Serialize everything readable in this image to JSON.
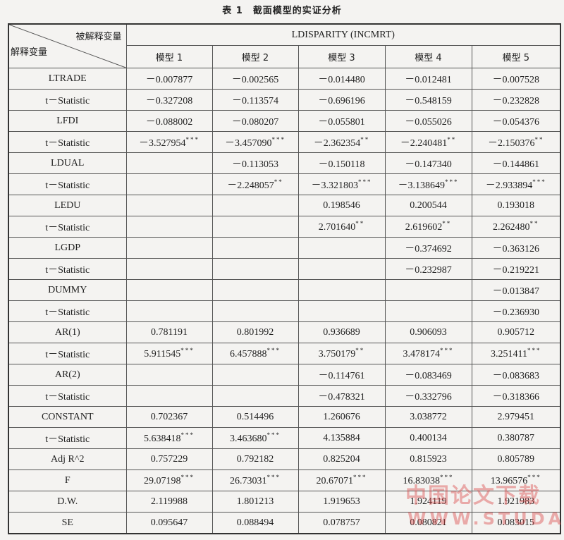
{
  "title": "表 1　截面模型的实证分析",
  "header": {
    "dependent_label": "被解释变量",
    "independent_label": "解释变量",
    "dependent_variable": "LDISPARITY (INCMRT)",
    "models": [
      "模型 1",
      "模型 2",
      "模型 3",
      "模型 4",
      "模型 5"
    ]
  },
  "rows": [
    {
      "label": "LTRADE",
      "cells": [
        {
          "v": "－0.007877",
          "s": ""
        },
        {
          "v": "－0.002565",
          "s": ""
        },
        {
          "v": "－0.014480",
          "s": ""
        },
        {
          "v": "－0.012481",
          "s": ""
        },
        {
          "v": "－0.007528",
          "s": ""
        }
      ]
    },
    {
      "label": "t－Statistic",
      "cells": [
        {
          "v": "－0.327208",
          "s": ""
        },
        {
          "v": "－0.113574",
          "s": ""
        },
        {
          "v": "－0.696196",
          "s": ""
        },
        {
          "v": "－0.548159",
          "s": ""
        },
        {
          "v": "－0.232828",
          "s": ""
        }
      ]
    },
    {
      "label": "LFDI",
      "cells": [
        {
          "v": "－0.088002",
          "s": ""
        },
        {
          "v": "－0.080207",
          "s": ""
        },
        {
          "v": "－0.055801",
          "s": ""
        },
        {
          "v": "－0.055026",
          "s": ""
        },
        {
          "v": "－0.054376",
          "s": ""
        }
      ]
    },
    {
      "label": "t－Statistic",
      "cells": [
        {
          "v": "－3.527954",
          "s": "***"
        },
        {
          "v": "－3.457090",
          "s": "***"
        },
        {
          "v": "－2.362354",
          "s": "**"
        },
        {
          "v": "－2.240481",
          "s": "**"
        },
        {
          "v": "－2.150376",
          "s": "**"
        }
      ]
    },
    {
      "label": "LDUAL",
      "cells": [
        {
          "v": "",
          "s": ""
        },
        {
          "v": "－0.113053",
          "s": ""
        },
        {
          "v": "－0.150118",
          "s": ""
        },
        {
          "v": "－0.147340",
          "s": ""
        },
        {
          "v": "－0.144861",
          "s": ""
        }
      ]
    },
    {
      "label": "t－Statistic",
      "cells": [
        {
          "v": "",
          "s": ""
        },
        {
          "v": "－2.248057",
          "s": "**"
        },
        {
          "v": "－3.321803",
          "s": "***"
        },
        {
          "v": "－3.138649",
          "s": "***"
        },
        {
          "v": "－2.933894",
          "s": "***"
        }
      ]
    },
    {
      "label": "LEDU",
      "cells": [
        {
          "v": "",
          "s": ""
        },
        {
          "v": "",
          "s": ""
        },
        {
          "v": "0.198546",
          "s": ""
        },
        {
          "v": "0.200544",
          "s": ""
        },
        {
          "v": "0.193018",
          "s": ""
        }
      ]
    },
    {
      "label": "t－Statistic",
      "cells": [
        {
          "v": "",
          "s": ""
        },
        {
          "v": "",
          "s": ""
        },
        {
          "v": "2.701640",
          "s": "**"
        },
        {
          "v": "2.619602",
          "s": "**"
        },
        {
          "v": "2.262480",
          "s": "**"
        }
      ]
    },
    {
      "label": "LGDP",
      "cells": [
        {
          "v": "",
          "s": ""
        },
        {
          "v": "",
          "s": ""
        },
        {
          "v": "",
          "s": ""
        },
        {
          "v": "－0.374692",
          "s": ""
        },
        {
          "v": "－0.363126",
          "s": ""
        }
      ]
    },
    {
      "label": "t－Statistic",
      "cells": [
        {
          "v": "",
          "s": ""
        },
        {
          "v": "",
          "s": ""
        },
        {
          "v": "",
          "s": ""
        },
        {
          "v": "－0.232987",
          "s": ""
        },
        {
          "v": "－0.219221",
          "s": ""
        }
      ]
    },
    {
      "label": "DUMMY",
      "cells": [
        {
          "v": "",
          "s": ""
        },
        {
          "v": "",
          "s": ""
        },
        {
          "v": "",
          "s": ""
        },
        {
          "v": "",
          "s": ""
        },
        {
          "v": "－0.013847",
          "s": ""
        }
      ]
    },
    {
      "label": "t－Statistic",
      "cells": [
        {
          "v": "",
          "s": ""
        },
        {
          "v": "",
          "s": ""
        },
        {
          "v": "",
          "s": ""
        },
        {
          "v": "",
          "s": ""
        },
        {
          "v": "－0.236930",
          "s": ""
        }
      ]
    },
    {
      "label": "AR(1)",
      "cells": [
        {
          "v": "0.781191",
          "s": ""
        },
        {
          "v": "0.801992",
          "s": ""
        },
        {
          "v": "0.936689",
          "s": ""
        },
        {
          "v": "0.906093",
          "s": ""
        },
        {
          "v": "0.905712",
          "s": ""
        }
      ]
    },
    {
      "label": "t－Statistic",
      "cells": [
        {
          "v": "5.911545",
          "s": "***"
        },
        {
          "v": "6.457888",
          "s": "***"
        },
        {
          "v": "3.750179",
          "s": "**"
        },
        {
          "v": "3.478174",
          "s": "***"
        },
        {
          "v": "3.251411",
          "s": "***"
        }
      ]
    },
    {
      "label": "AR(2)",
      "cells": [
        {
          "v": "",
          "s": ""
        },
        {
          "v": "",
          "s": ""
        },
        {
          "v": "－0.114761",
          "s": ""
        },
        {
          "v": "－0.083469",
          "s": ""
        },
        {
          "v": "－0.083683",
          "s": ""
        }
      ]
    },
    {
      "label": "t－Statistic",
      "cells": [
        {
          "v": "",
          "s": ""
        },
        {
          "v": "",
          "s": ""
        },
        {
          "v": "－0.478321",
          "s": ""
        },
        {
          "v": "－0.332796",
          "s": ""
        },
        {
          "v": "－0.318366",
          "s": ""
        }
      ]
    },
    {
      "label": "CONSTANT",
      "cells": [
        {
          "v": "0.702367",
          "s": ""
        },
        {
          "v": "0.514496",
          "s": ""
        },
        {
          "v": "1.260676",
          "s": ""
        },
        {
          "v": "3.038772",
          "s": ""
        },
        {
          "v": "2.979451",
          "s": ""
        }
      ]
    },
    {
      "label": "t－Statistic",
      "cells": [
        {
          "v": "5.638418",
          "s": "***"
        },
        {
          "v": "3.463680",
          "s": "***"
        },
        {
          "v": "4.135884",
          "s": ""
        },
        {
          "v": "0.400134",
          "s": ""
        },
        {
          "v": "0.380787",
          "s": ""
        }
      ]
    },
    {
      "label": "Adj R^2",
      "cells": [
        {
          "v": "0.757229",
          "s": ""
        },
        {
          "v": "0.792182",
          "s": ""
        },
        {
          "v": "0.825204",
          "s": ""
        },
        {
          "v": "0.815923",
          "s": ""
        },
        {
          "v": "0.805789",
          "s": ""
        }
      ]
    },
    {
      "label": "F",
      "cells": [
        {
          "v": "29.07198",
          "s": "***"
        },
        {
          "v": "26.73031",
          "s": "***"
        },
        {
          "v": "20.67071",
          "s": "***"
        },
        {
          "v": "16.83038",
          "s": "***"
        },
        {
          "v": "13.96576",
          "s": "***"
        }
      ]
    },
    {
      "label": "D.W.",
      "cells": [
        {
          "v": "2.119988",
          "s": ""
        },
        {
          "v": "1.801213",
          "s": ""
        },
        {
          "v": "1.919653",
          "s": ""
        },
        {
          "v": "1.924119",
          "s": ""
        },
        {
          "v": "1.921983",
          "s": ""
        }
      ]
    },
    {
      "label": "SE",
      "cells": [
        {
          "v": "0.095647",
          "s": ""
        },
        {
          "v": "0.088494",
          "s": ""
        },
        {
          "v": "0.078757",
          "s": ""
        },
        {
          "v": "0.080821",
          "s": ""
        },
        {
          "v": "0.083015",
          "s": ""
        }
      ]
    }
  ],
  "watermark": {
    "line1": "中国论文下载",
    "line2": "WWW.STUDA"
  }
}
